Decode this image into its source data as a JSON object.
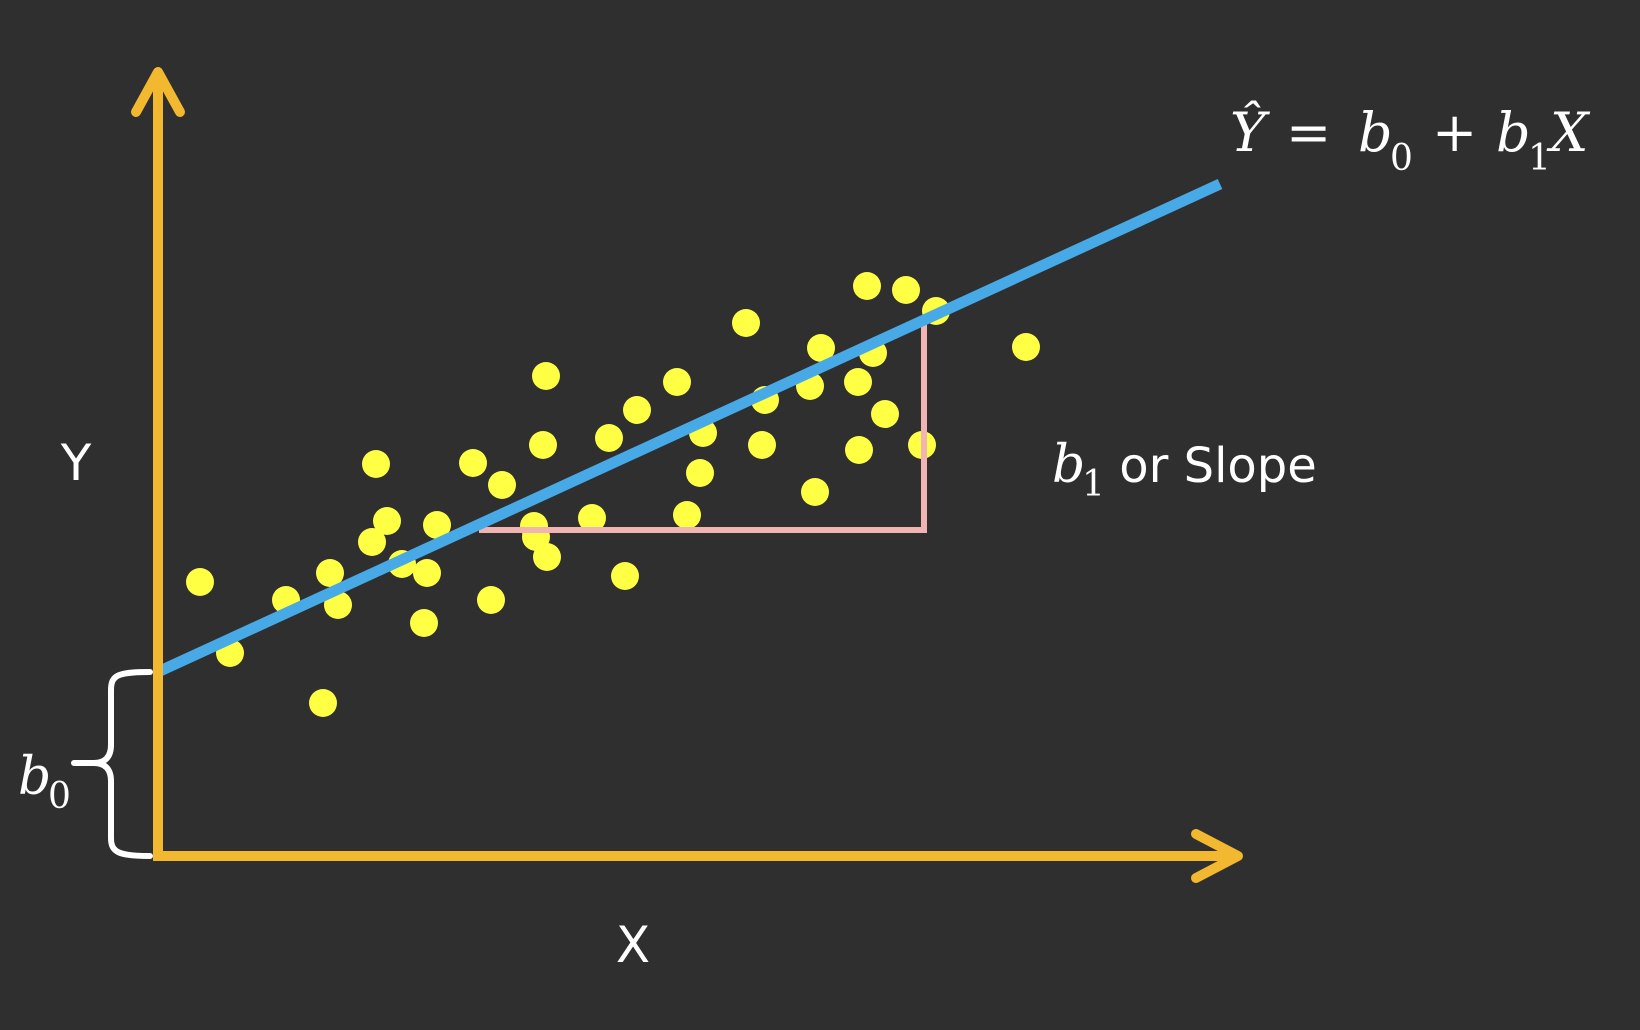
{
  "diagram": {
    "y_axis_label": "Y",
    "x_axis_label": "X",
    "intercept_label": {
      "symbol": "b",
      "subscript": "0"
    },
    "slope_label": {
      "symbol": "b",
      "subscript": "1",
      "text": " or Slope"
    },
    "equation": {
      "lhs": "Ŷ",
      "eq": "=",
      "b0": "b",
      "b0_sub": "0",
      "plus": "+",
      "b1": "b",
      "b1_sub": "1",
      "x": "X"
    }
  },
  "colors": {
    "background": "#2f2f2f",
    "axes": "#f2b82f",
    "regression_line": "#47a9e6",
    "points": "#ffff44",
    "slope_triangle": "#f2b3b3",
    "brace": "#ffffff",
    "text": "#ffffff"
  },
  "scatter_points": [
    [
      200,
      582
    ],
    [
      230,
      653
    ],
    [
      286,
      600
    ],
    [
      323,
      703
    ],
    [
      330,
      573
    ],
    [
      338,
      605
    ],
    [
      372,
      542
    ],
    [
      376,
      464
    ],
    [
      387,
      521
    ],
    [
      402,
      564
    ],
    [
      424,
      623
    ],
    [
      427,
      573
    ],
    [
      437,
      525
    ],
    [
      473,
      463
    ],
    [
      491,
      600
    ],
    [
      502,
      485
    ],
    [
      534,
      526
    ],
    [
      536,
      537
    ],
    [
      543,
      445
    ],
    [
      546,
      376
    ],
    [
      547,
      557
    ],
    [
      592,
      518
    ],
    [
      609,
      438
    ],
    [
      625,
      576
    ],
    [
      637,
      410
    ],
    [
      677,
      382
    ],
    [
      687,
      515
    ],
    [
      700,
      473
    ],
    [
      703,
      433
    ],
    [
      746,
      323
    ],
    [
      762,
      445
    ],
    [
      765,
      400
    ],
    [
      810,
      386
    ],
    [
      815,
      492
    ],
    [
      821,
      348
    ],
    [
      858,
      382
    ],
    [
      859,
      450
    ],
    [
      867,
      286
    ],
    [
      873,
      353
    ],
    [
      885,
      414
    ],
    [
      906,
      290
    ],
    [
      922,
      445
    ],
    [
      936,
      311
    ],
    [
      1026,
      347
    ]
  ]
}
